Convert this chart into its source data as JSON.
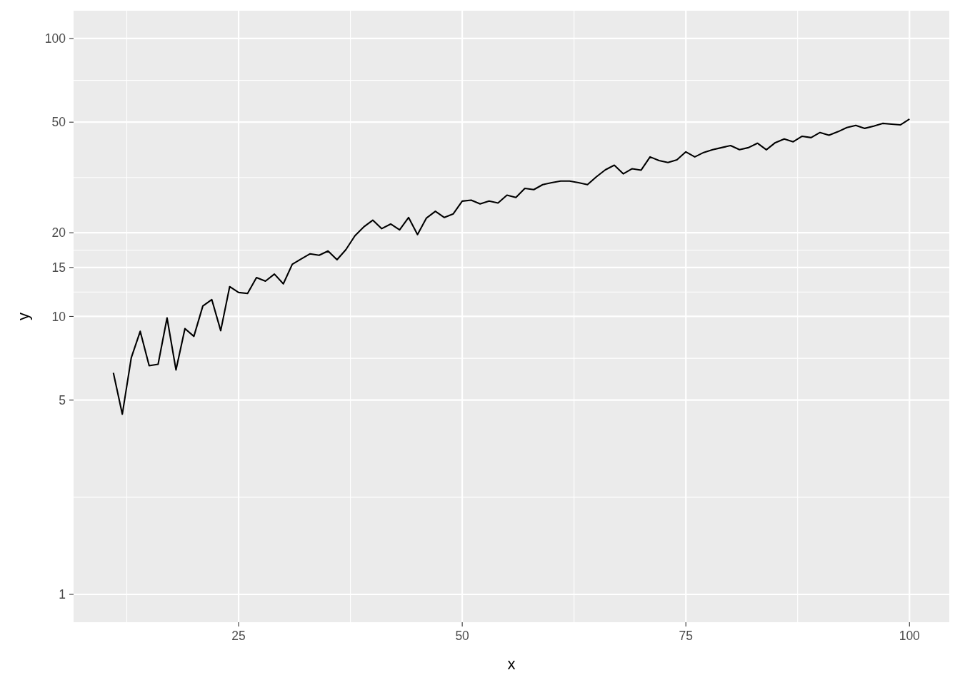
{
  "chart_data": {
    "type": "line",
    "xlabel": "x",
    "ylabel": "y",
    "log": "y",
    "grid": true,
    "color": "#000000",
    "x": [
      11,
      12,
      13,
      14,
      15,
      16,
      17,
      18,
      19,
      20,
      21,
      22,
      23,
      24,
      25,
      26,
      27,
      28,
      29,
      30,
      31,
      32,
      33,
      34,
      35,
      36,
      37,
      38,
      39,
      40,
      41,
      42,
      43,
      44,
      45,
      46,
      47,
      48,
      49,
      50,
      51,
      52,
      53,
      54,
      55,
      56,
      57,
      58,
      59,
      60,
      61,
      62,
      63,
      64,
      65,
      66,
      67,
      68,
      69,
      70,
      71,
      72,
      73,
      74,
      75,
      76,
      77,
      78,
      79,
      80,
      81,
      82,
      83,
      84,
      85,
      86,
      87,
      88,
      89,
      90,
      91,
      92,
      93,
      94,
      95,
      96,
      97,
      98,
      99,
      100
    ],
    "values": [
      6.27,
      4.45,
      7.1,
      8.84,
      6.65,
      6.73,
      9.88,
      6.42,
      9.04,
      8.48,
      10.9,
      11.5,
      8.89,
      12.8,
      12.2,
      12.1,
      13.8,
      13.4,
      14.2,
      13.1,
      15.4,
      16.1,
      16.8,
      16.6,
      17.2,
      16.0,
      17.4,
      19.5,
      21.0,
      22.2,
      20.7,
      21.5,
      20.5,
      22.7,
      19.7,
      22.6,
      23.9,
      22.7,
      23.4,
      26.0,
      26.2,
      25.4,
      26.0,
      25.6,
      27.3,
      26.8,
      28.9,
      28.6,
      29.8,
      30.3,
      30.7,
      30.7,
      30.3,
      29.8,
      31.8,
      33.7,
      35.0,
      32.6,
      34.0,
      33.6,
      37.5,
      36.4,
      35.8,
      36.6,
      39.1,
      37.5,
      38.9,
      39.8,
      40.5,
      41.2,
      39.8,
      40.5,
      42.0,
      39.8,
      42.2,
      43.5,
      42.5,
      44.5,
      44.0,
      45.9,
      44.9,
      46.2,
      47.8,
      48.7,
      47.5,
      48.4,
      49.5,
      49.2,
      48.9,
      51.3
    ],
    "xlim": [
      6.55,
      104.45
    ],
    "xticks": [
      25,
      50,
      75,
      100
    ],
    "ylim": [
      0.794,
      125.9
    ],
    "yticks": [
      1,
      5,
      10,
      15,
      20,
      50,
      100
    ]
  }
}
